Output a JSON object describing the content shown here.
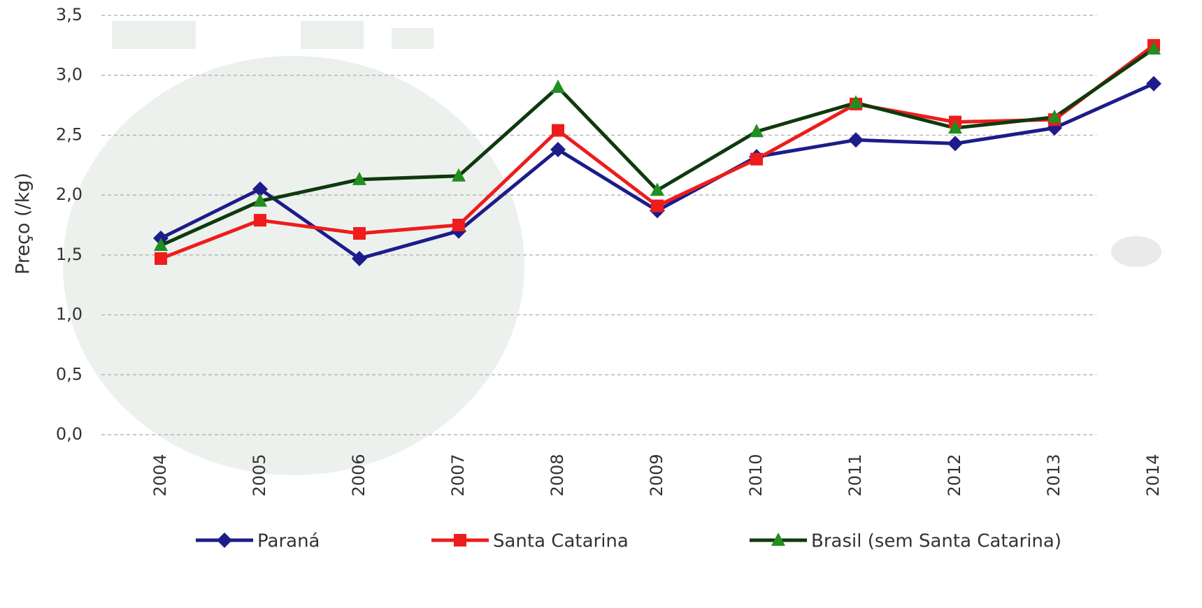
{
  "chart_data": {
    "type": "line",
    "y_label": "Preço (/kg)",
    "categories": [
      "2004",
      "2005",
      "2006",
      "2007",
      "2008",
      "2009",
      "2010",
      "2011",
      "2012",
      "2013",
      "2014"
    ],
    "series": [
      {
        "name": "Paraná",
        "color": "#1c1c8a",
        "marker": "diamond",
        "marker_color": "#1c1c8a",
        "values": [
          1.64,
          2.05,
          1.47,
          1.7,
          2.38,
          1.87,
          2.32,
          2.46,
          2.43,
          2.56,
          2.93
        ]
      },
      {
        "name": "Santa Catarina",
        "color": "#ee1c1c",
        "marker": "square",
        "marker_color": "#ee1c1c",
        "values": [
          1.47,
          1.79,
          1.68,
          1.75,
          2.54,
          1.91,
          2.3,
          2.76,
          2.61,
          2.63,
          3.25
        ]
      },
      {
        "name": "Brasil (sem Santa Catarina)",
        "color": "#0e3a0e",
        "marker": "triangle",
        "marker_color": "#1f8f1f",
        "values": [
          1.58,
          1.95,
          2.13,
          2.16,
          2.9,
          2.04,
          2.53,
          2.77,
          2.56,
          2.65,
          3.22
        ]
      }
    ],
    "ylim": [
      0,
      3.5
    ],
    "yticks": [
      {
        "value": 0,
        "label": "0,0"
      },
      {
        "value": 0.5,
        "label": "0,5"
      },
      {
        "value": 1,
        "label": "1,0"
      },
      {
        "value": 1.5,
        "label": "1,5"
      },
      {
        "value": 2,
        "label": "2,0"
      },
      {
        "value": 2.5,
        "label": "2,5"
      },
      {
        "value": 3,
        "label": "3,0"
      },
      {
        "value": 3.5,
        "label": "3,5"
      }
    ],
    "grid": true,
    "legend": "bottom"
  }
}
